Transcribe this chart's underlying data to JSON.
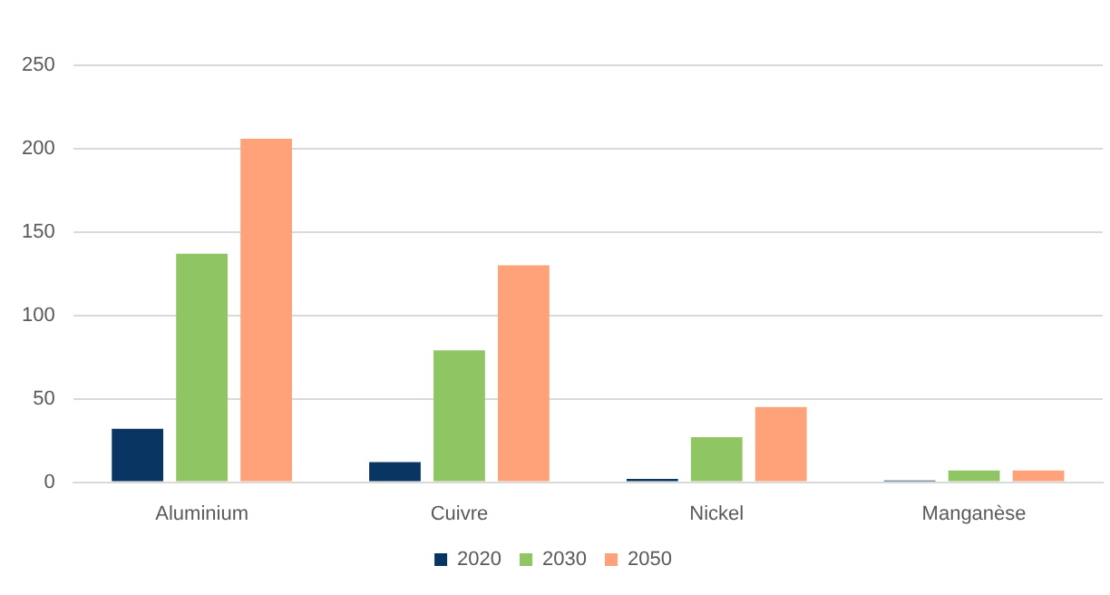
{
  "chart_data": {
    "type": "bar",
    "categories": [
      "Aluminium",
      "Cuivre",
      "Nickel",
      "Manganèse"
    ],
    "series": [
      {
        "name": "2020",
        "color": "#093562",
        "values": [
          32,
          12,
          2,
          1
        ]
      },
      {
        "name": "2030",
        "color": "#8fc563",
        "values": [
          137,
          79,
          27,
          7
        ]
      },
      {
        "name": "2050",
        "color": "#ffa27a",
        "values": [
          206,
          130,
          45,
          7
        ]
      }
    ],
    "ylim": [
      0,
      250
    ],
    "yticks": [
      0,
      50,
      100,
      150,
      200,
      250
    ],
    "grid": "y",
    "legend": "bottom"
  }
}
